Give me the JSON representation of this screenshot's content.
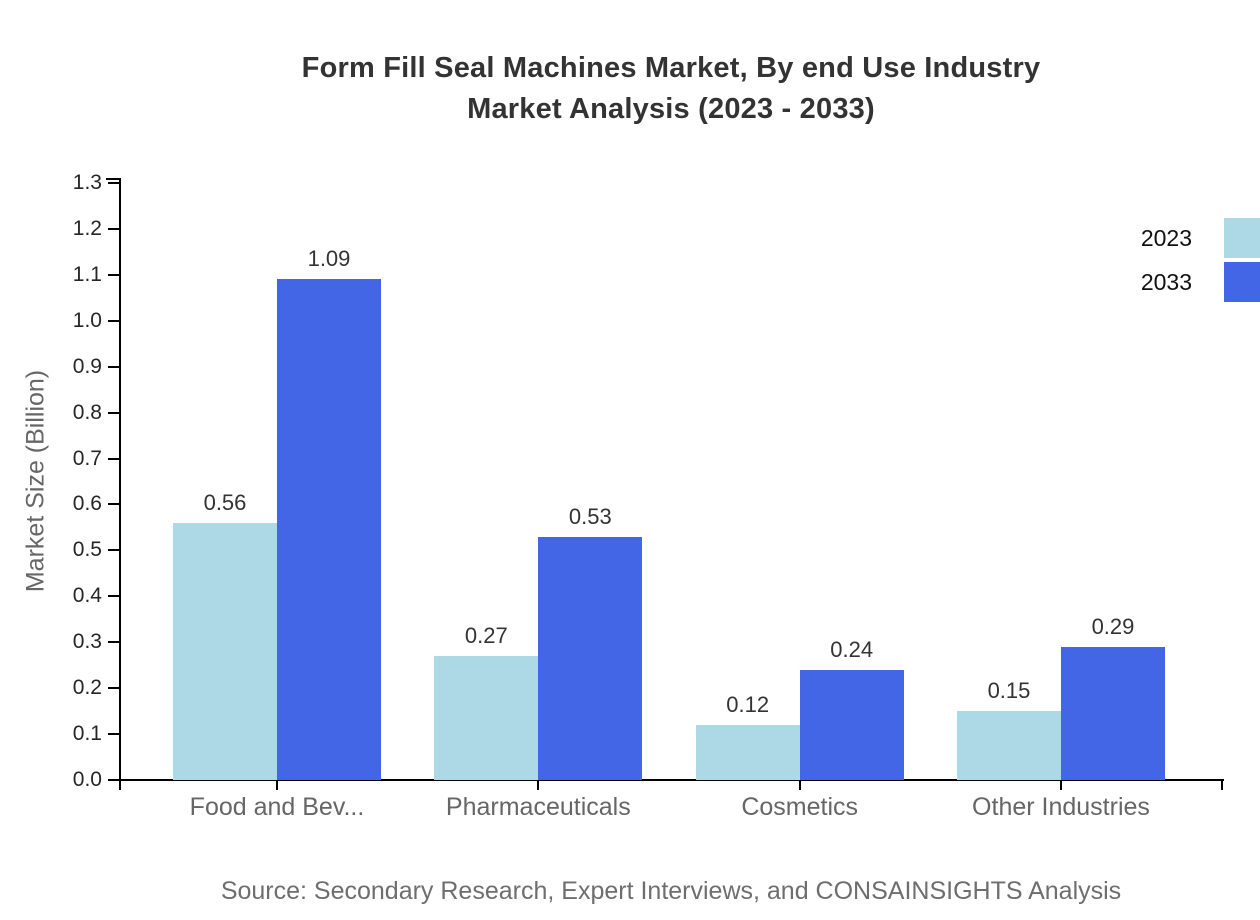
{
  "title": {
    "line1": "Form Fill Seal Machines Market, By end Use Industry",
    "line2": "Market Analysis (2023 - 2033)"
  },
  "footer": {
    "source": "Source: Secondary Research, Expert Interviews, and CONSAINSIGHTS Analysis"
  },
  "colors": {
    "series_2023": "#ADD8E6",
    "series_2033": "#4266E6",
    "axis": "#000000",
    "title_text": "#333333",
    "tick_text": "#262626",
    "category_text": "#666666",
    "source_text": "#6e6e6e"
  },
  "legend": {
    "position": "top-right",
    "items": [
      {
        "label": "2023",
        "color": "#ADD8E6"
      },
      {
        "label": "2033",
        "color": "#4266E6"
      }
    ]
  },
  "chart_data": {
    "type": "bar",
    "title": "Form Fill Seal Machines Market, By end Use Industry Market Analysis (2023 - 2033)",
    "categories": [
      "Food and Bev...",
      "Pharmaceuticals",
      "Cosmetics",
      "Other Industries"
    ],
    "series": [
      {
        "name": "2023",
        "color": "#ADD8E6",
        "values": [
          0.56,
          0.27,
          0.12,
          0.15
        ]
      },
      {
        "name": "2033",
        "color": "#4266E6",
        "values": [
          1.09,
          0.53,
          0.24,
          0.29
        ]
      }
    ],
    "value_labels": [
      "0.56",
      "1.09",
      "0.27",
      "0.53",
      "0.12",
      "0.24",
      "0.15",
      "0.29"
    ],
    "xlabel": "",
    "ylabel": "Market Size (Billion)",
    "ylim": [
      0,
      1.3
    ],
    "ytick_step": 0.1,
    "yticks": [
      "0.0",
      "0.1",
      "0.2",
      "0.3",
      "0.4",
      "0.5",
      "0.6",
      "0.7",
      "0.8",
      "0.9",
      "1.0",
      "1.1",
      "1.2",
      "1.3"
    ],
    "grid": false,
    "legend_position": "right-top",
    "bar_value_labels_shown": true
  }
}
